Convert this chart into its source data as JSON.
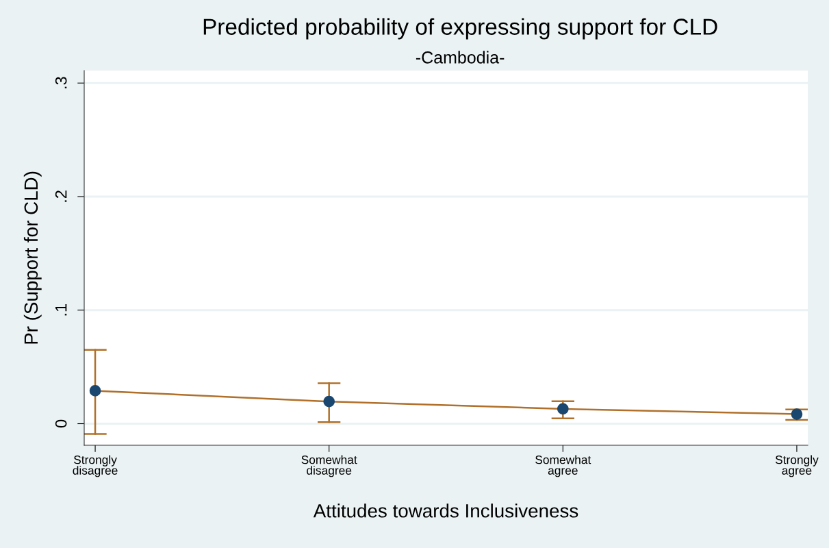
{
  "chart_data": {
    "type": "line",
    "title": "Predicted probability of expressing support for CLD",
    "subtitle": "-Cambodia-",
    "xlabel": "Attitudes towards Inclusiveness",
    "ylabel": "Pr (Support for CLD)",
    "categories": [
      "Strongly\ndisagree",
      "Somewhat\ndisagree",
      "Somewhat\nagree",
      "Strongly\nagree"
    ],
    "series": [
      {
        "color": "#1a476f",
        "values": [
          0.029,
          0.0195,
          0.013,
          0.0084
        ],
        "errors": [
          [
            -0.009,
            0.065
          ],
          [
            0.0014,
            0.0356
          ],
          [
            0.0047,
            0.0197
          ],
          [
            0.0033,
            0.0125
          ]
        ]
      }
    ],
    "ylim": [
      -0.019,
      0.311
    ],
    "yticks": [
      0,
      {
        "value": 0.1,
        "label": ".1"
      },
      {
        "value": 0.2,
        "label": ".2"
      },
      {
        "value": 0.3,
        "label": ".3"
      }
    ],
    "grid": "y",
    "marker": "circle",
    "line_style": "solid"
  }
}
